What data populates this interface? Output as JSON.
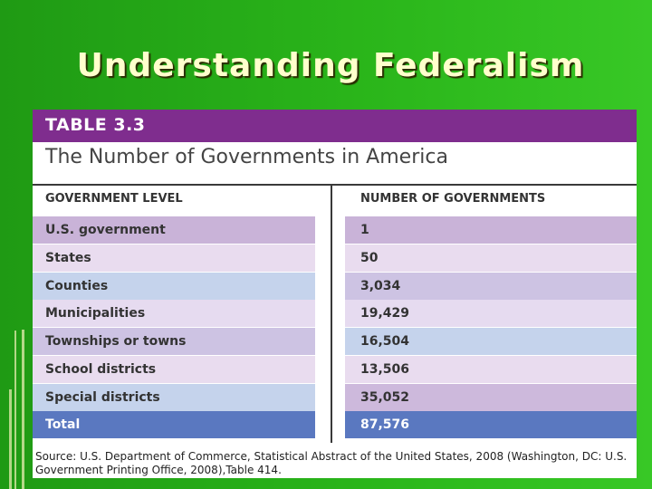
{
  "slide": {
    "title": "Understanding Federalism"
  },
  "table": {
    "number": "TABLE 3.3",
    "title": "The Number of Governments in America",
    "columns": [
      "GOVERNMENT LEVEL",
      "NUMBER OF GOVERNMENTS"
    ],
    "rows": [
      {
        "level": "U.S. government",
        "count": "1",
        "left_color": "#c9b3d8",
        "right_color": "#c9b3d8"
      },
      {
        "level": "States",
        "count": "50",
        "left_color": "#e9dcef",
        "right_color": "#e9dcef"
      },
      {
        "level": "Counties",
        "count": "3,034",
        "left_color": "#c5d3ec",
        "right_color": "#cdc3e3"
      },
      {
        "level": "Municipalities",
        "count": "19,429",
        "left_color": "#e6dbf0",
        "right_color": "#e6dbf0"
      },
      {
        "level": "Townships or towns",
        "count": "16,504",
        "left_color": "#cdc3e3",
        "right_color": "#c5d3ec"
      },
      {
        "level": "School districts",
        "count": "13,506",
        "left_color": "#e9dcef",
        "right_color": "#e9dcef"
      },
      {
        "level": "Special districts",
        "count": "35,052",
        "left_color": "#c5d3ec",
        "right_color": "#cdb9dc"
      }
    ],
    "total": {
      "level": "Total",
      "count": "87,576",
      "color": "#5a78c0"
    },
    "source": "Source: U.S. Department of Commerce, Statistical Abstract of the United States, 2008 (Washington, DC: U.S. Government Printing Office, 2008),Table 414."
  },
  "colors": {
    "background": "#2ab51a",
    "title_text": "#ffffcc",
    "banner": "#7f2d8e"
  }
}
